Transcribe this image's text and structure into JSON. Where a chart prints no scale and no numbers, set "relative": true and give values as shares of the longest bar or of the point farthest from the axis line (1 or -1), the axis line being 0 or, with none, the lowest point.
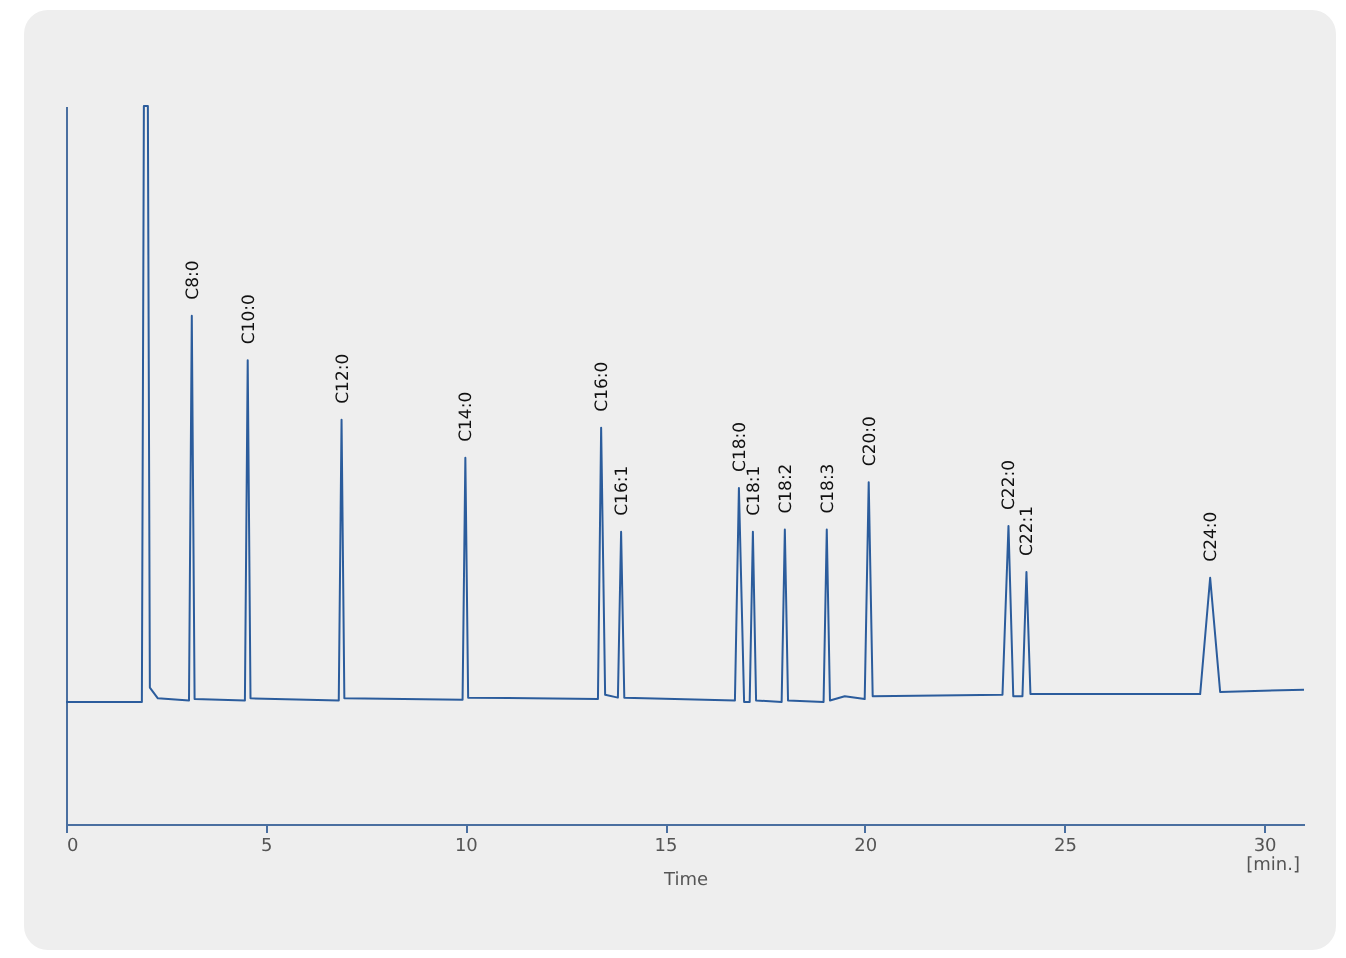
{
  "chart_data": {
    "type": "line",
    "xlabel": "Time",
    "relative": true,
    "xlim": [
      0,
      31
    ],
    "xticks": [
      0,
      5,
      10,
      15,
      20,
      25,
      30
    ],
    "grid": false,
    "line_style": "solid",
    "marker": "none",
    "series": [
      {
        "color": "#2b5c9c",
        "x": [
          0,
          1.9,
          1.95,
          2.05,
          2.1,
          2.3,
          3.08,
          3.15,
          3.22,
          4.48,
          4.55,
          4.62,
          6.83,
          6.9,
          6.97,
          9.93,
          10.0,
          10.07,
          13.32,
          13.4,
          13.5,
          13.82,
          13.9,
          13.98,
          16.75,
          16.85,
          16.98,
          17.12,
          17.2,
          17.28,
          17.92,
          18.0,
          18.08,
          18.97,
          19.05,
          19.13,
          19.5,
          20.0,
          20.1,
          20.2,
          23.45,
          23.6,
          23.72,
          23.95,
          24.05,
          24.15,
          28.4,
          28.65,
          28.9,
          31
        ],
        "values": [
          0.17,
          0.17,
          1,
          1,
          0.19,
          0.175,
          0.172,
          0.708,
          0.174,
          0.172,
          0.646,
          0.175,
          0.172,
          0.563,
          0.175,
          0.173,
          0.51,
          0.176,
          0.174,
          0.552,
          0.18,
          0.176,
          0.407,
          0.176,
          0.172,
          0.468,
          0.17,
          0.17,
          0.407,
          0.172,
          0.17,
          0.41,
          0.172,
          0.17,
          0.41,
          0.172,
          0.178,
          0.174,
          0.476,
          0.178,
          0.18,
          0.415,
          0.178,
          0.178,
          0.351,
          0.181,
          0.181,
          0.343,
          0.184,
          0.187
        ]
      }
    ],
    "annotations": [
      {
        "text": "C8:0",
        "x": 3.15,
        "y": 0.708
      },
      {
        "text": "C10:0",
        "x": 4.55,
        "y": 0.646
      },
      {
        "text": "C12:0",
        "x": 6.9,
        "y": 0.563
      },
      {
        "text": "C14:0",
        "x": 10.0,
        "y": 0.51
      },
      {
        "text": "C16:0",
        "x": 13.4,
        "y": 0.552
      },
      {
        "text": "C16:1",
        "x": 13.9,
        "y": 0.407
      },
      {
        "text": "C18:0",
        "x": 16.85,
        "y": 0.468
      },
      {
        "text": "C18:1",
        "x": 17.2,
        "y": 0.407
      },
      {
        "text": "C18:2",
        "x": 18.0,
        "y": 0.41
      },
      {
        "text": "C18:3",
        "x": 19.05,
        "y": 0.41
      },
      {
        "text": "C20:0",
        "x": 20.1,
        "y": 0.476
      },
      {
        "text": "C22:0",
        "x": 23.6,
        "y": 0.415
      },
      {
        "text": "C22:1",
        "x": 24.05,
        "y": 0.351
      },
      {
        "text": "C24:0",
        "x": 28.65,
        "y": 0.343
      },
      "[min.]"
    ]
  }
}
